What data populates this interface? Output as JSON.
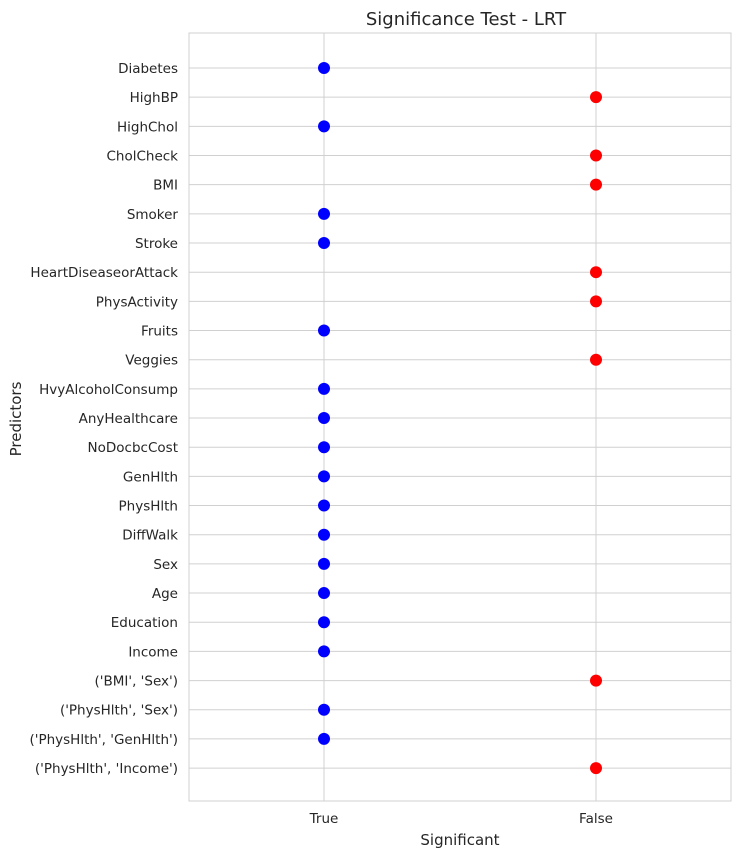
{
  "chart_data": {
    "type": "scatter",
    "title": "Significance Test - LRT",
    "xlabel": "Significant",
    "ylabel": "Predictors",
    "x_categories": [
      "True",
      "False"
    ],
    "grid": true,
    "colors": {
      "True": "#0000ff",
      "False": "#ff0000"
    },
    "points": [
      {
        "predictor": "Diabetes",
        "significant": "True"
      },
      {
        "predictor": "HighBP",
        "significant": "False"
      },
      {
        "predictor": "HighChol",
        "significant": "True"
      },
      {
        "predictor": "CholCheck",
        "significant": "False"
      },
      {
        "predictor": "BMI",
        "significant": "False"
      },
      {
        "predictor": "Smoker",
        "significant": "True"
      },
      {
        "predictor": "Stroke",
        "significant": "True"
      },
      {
        "predictor": "HeartDiseaseorAttack",
        "significant": "False"
      },
      {
        "predictor": "PhysActivity",
        "significant": "False"
      },
      {
        "predictor": "Fruits",
        "significant": "True"
      },
      {
        "predictor": "Veggies",
        "significant": "False"
      },
      {
        "predictor": "HvyAlcoholConsump",
        "significant": "True"
      },
      {
        "predictor": "AnyHealthcare",
        "significant": "True"
      },
      {
        "predictor": "NoDocbcCost",
        "significant": "True"
      },
      {
        "predictor": "GenHlth",
        "significant": "True"
      },
      {
        "predictor": "PhysHlth",
        "significant": "True"
      },
      {
        "predictor": "DiffWalk",
        "significant": "True"
      },
      {
        "predictor": "Sex",
        "significant": "True"
      },
      {
        "predictor": "Age",
        "significant": "True"
      },
      {
        "predictor": "Education",
        "significant": "True"
      },
      {
        "predictor": "Income",
        "significant": "True"
      },
      {
        "predictor": "('BMI', 'Sex')",
        "significant": "False"
      },
      {
        "predictor": "('PhysHlth', 'Sex')",
        "significant": "True"
      },
      {
        "predictor": "('PhysHlth', 'GenHlth')",
        "significant": "True"
      },
      {
        "predictor": "('PhysHlth', 'Income')",
        "significant": "False"
      }
    ]
  }
}
